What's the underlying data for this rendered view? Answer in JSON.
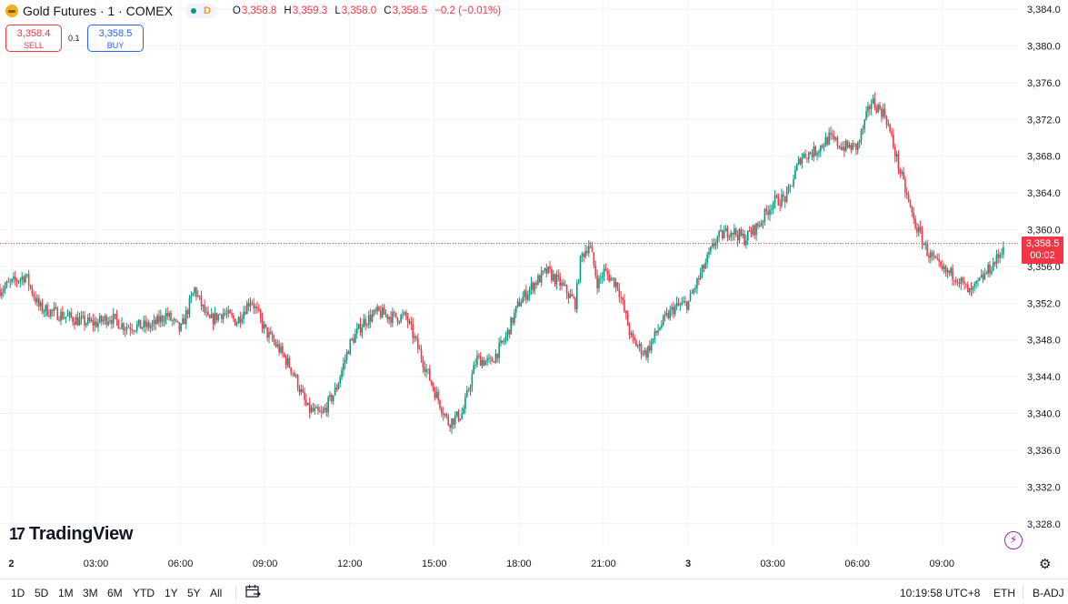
{
  "header": {
    "symbol_title": "Gold Futures · 1 · COMEX",
    "session_letter": "D",
    "ohlc": [
      {
        "k": "O",
        "v": "3,358.8"
      },
      {
        "k": "H",
        "v": "3,359.3"
      },
      {
        "k": "L",
        "v": "3,358.0"
      },
      {
        "k": "C",
        "v": "3,358.5"
      },
      {
        "k": "",
        "v": "−0.2 (−0.01%)"
      }
    ]
  },
  "trade": {
    "sell_price": "3,358.4",
    "sell_label": "SELL",
    "spread": "0.1",
    "buy_price": "3,358.5",
    "buy_label": "BUY"
  },
  "last_price": {
    "price": "3,358.5",
    "countdown": "00:02",
    "value": 3358.5
  },
  "logo_text": "TradingView",
  "bottom": {
    "ranges": [
      "1D",
      "5D",
      "1M",
      "3M",
      "6M",
      "YTD",
      "1Y",
      "5Y",
      "All"
    ],
    "clock": "10:19:58 UTC+8",
    "session": "ETH",
    "adjust": "B-ADJ"
  },
  "colors": {
    "up": "#089981",
    "down": "#f23645",
    "grid": "#f0f3fa",
    "accent": "#2962ff"
  },
  "chart_data": {
    "type": "candlestick",
    "y_ticks": [
      "3,328.0",
      "3,332.0",
      "3,336.0",
      "3,340.0",
      "3,344.0",
      "3,348.0",
      "3,352.0",
      "3,356.0",
      "3,360.0",
      "3,364.0",
      "3,368.0",
      "3,372.0",
      "3,376.0",
      "3,380.0",
      "3,384.0"
    ],
    "y_tick_values": [
      3328,
      3332,
      3336,
      3340,
      3344,
      3348,
      3352,
      3356,
      3360,
      3364,
      3368,
      3372,
      3376,
      3380,
      3384
    ],
    "ylim": [
      3325.6,
      3385.0
    ],
    "x_ticks": [
      "2",
      "03:00",
      "06:00",
      "09:00",
      "12:00",
      "15:00",
      "18:00",
      "21:00",
      "3",
      "03:00",
      "06:00",
      "09:00"
    ],
    "x_tick_hours": [
      0,
      3,
      6,
      9,
      12,
      15,
      18,
      21,
      24,
      27,
      30,
      33
    ],
    "x_range_hours": [
      -0.4,
      35.7
    ],
    "path_hours": [
      -0.4,
      0.5,
      1.0,
      1.5,
      2.0,
      2.5,
      3.0,
      3.5,
      4.0,
      4.5,
      5.0,
      5.5,
      6.0,
      6.5,
      7.0,
      7.5,
      8.0,
      8.5,
      9.0,
      9.5,
      10.0,
      10.5,
      11.0,
      11.5,
      12.0,
      12.5,
      13.0,
      13.5,
      14.0,
      14.5,
      15.0,
      15.5,
      16.0,
      16.5,
      17.0,
      17.5,
      18.0,
      18.5,
      19.0,
      19.5,
      20.0,
      20.2,
      20.5,
      20.8,
      21.0,
      21.5,
      22.0,
      22.5,
      23.0,
      23.5,
      24.0,
      24.5,
      25.0,
      25.5,
      26.0,
      26.5,
      27.0,
      27.5,
      28.0,
      28.5,
      29.0,
      29.5,
      30.0,
      30.5,
      31.0,
      31.5,
      32.0,
      32.5,
      33.0,
      33.5,
      34.0,
      34.5,
      35.0,
      35.2
    ],
    "path_values": [
      3353.5,
      3355.0,
      3351.5,
      3351.0,
      3350.5,
      3350.0,
      3349.8,
      3350.5,
      3349.5,
      3349.5,
      3349.5,
      3350.8,
      3349.0,
      3353.5,
      3350.0,
      3351.0,
      3350.0,
      3352.5,
      3349.0,
      3347.0,
      3344.5,
      3340.5,
      3339.8,
      3342.5,
      3347.5,
      3350.0,
      3351.0,
      3350.5,
      3350.5,
      3346.5,
      3342.5,
      3339.0,
      3340.0,
      3346.0,
      3345.5,
      3348.0,
      3352.0,
      3354.0,
      3355.5,
      3354.0,
      3352.0,
      3357.0,
      3358.5,
      3354.0,
      3355.5,
      3354.0,
      3348.0,
      3346.5,
      3349.5,
      3351.5,
      3352.0,
      3355.5,
      3359.0,
      3360.0,
      3359.0,
      3360.5,
      3363.0,
      3363.5,
      3368.0,
      3368.5,
      3370.0,
      3369.0,
      3369.0,
      3374.0,
      3372.5,
      3366.5,
      3361.0,
      3357.5,
      3355.5,
      3355.0,
      3353.0,
      3355.0,
      3357.0,
      3358.5
    ]
  }
}
